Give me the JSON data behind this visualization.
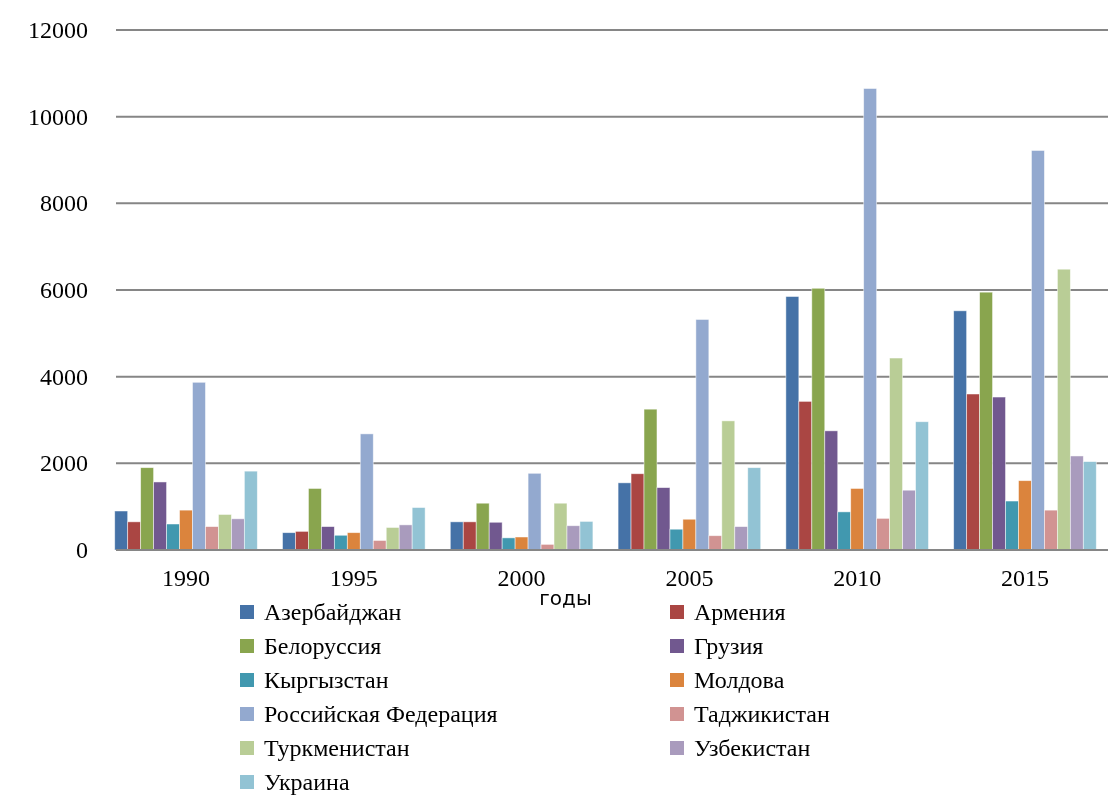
{
  "chart_data": {
    "type": "bar",
    "xlabel": "годы",
    "categories": [
      "1990",
      "1995",
      "2000",
      "2005",
      "2010",
      "2015"
    ],
    "ylim": [
      0,
      12000
    ],
    "yticks": [
      0,
      2000,
      4000,
      6000,
      8000,
      10000,
      12000
    ],
    "grid": "y",
    "legend": "bottom",
    "series": [
      {
        "name": "Азербайджан",
        "color": "#4572a7",
        "values": [
          900,
          400,
          650,
          1550,
          5850,
          5520
        ]
      },
      {
        "name": "Армения",
        "color": "#aa4643",
        "values": [
          650,
          430,
          650,
          1760,
          3430,
          3600
        ]
      },
      {
        "name": "Белоруссия",
        "color": "#89a54e",
        "values": [
          1900,
          1420,
          1080,
          3250,
          6040,
          5950
        ]
      },
      {
        "name": "Грузия",
        "color": "#71588f",
        "values": [
          1570,
          540,
          640,
          1440,
          2750,
          3530
        ]
      },
      {
        "name": "Кыргызстан",
        "color": "#4198af",
        "values": [
          600,
          340,
          280,
          480,
          880,
          1130
        ]
      },
      {
        "name": "Молдова",
        "color": "#db843d",
        "values": [
          920,
          400,
          300,
          710,
          1420,
          1600
        ]
      },
      {
        "name": "Российская Федерация",
        "color": "#93a9cf",
        "values": [
          3870,
          2680,
          1770,
          5320,
          10650,
          9220
        ]
      },
      {
        "name": "Таджикистан",
        "color": "#d19392",
        "values": [
          540,
          220,
          130,
          330,
          730,
          920
        ]
      },
      {
        "name": "Туркменистан",
        "color": "#b9cd96",
        "values": [
          820,
          520,
          1080,
          2980,
          4430,
          6480
        ]
      },
      {
        "name": "Узбекистан",
        "color": "#a99bbd",
        "values": [
          720,
          580,
          560,
          540,
          1380,
          2170
        ]
      },
      {
        "name": "Украина",
        "color": "#92c3d4",
        "values": [
          1820,
          980,
          660,
          1900,
          2960,
          2040
        ]
      }
    ]
  }
}
